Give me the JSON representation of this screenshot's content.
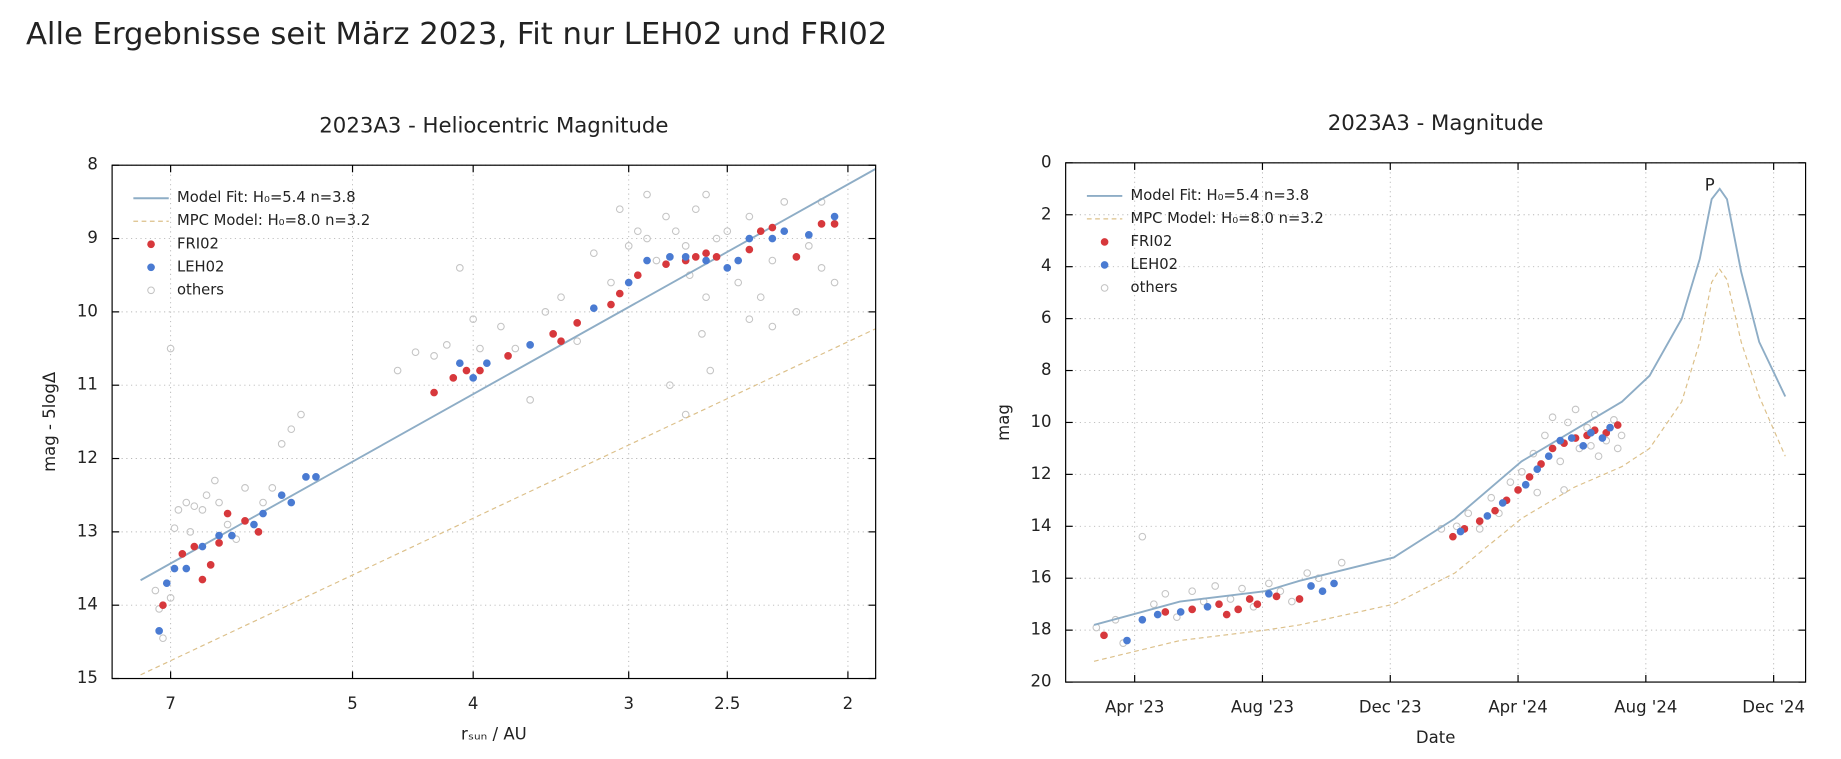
{
  "header": {
    "title": "Alle Ergebnisse seit März 2023, Fit nur LEH02 und FRI02"
  },
  "chart_data": [
    {
      "type": "scatter",
      "title": "2023A3 - Heliocentric Magnitude",
      "x_label": "rₛᵤₙ / AU",
      "y_label": "mag - 5logΔ",
      "x_scale": "log",
      "xlim": [
        7.8,
        1.9
      ],
      "xticks": [
        7,
        5,
        4,
        3,
        2.5,
        2
      ],
      "ylim": [
        15,
        8
      ],
      "yticks": [
        8,
        9,
        10,
        11,
        12,
        13,
        14,
        15
      ],
      "grid": true,
      "legend": "upper left",
      "series": [
        {
          "name": "Model Fit: H₀=5.4 n=3.8",
          "color": "#8eadc6",
          "style": "line",
          "x": [
            7.4,
            1.9
          ],
          "values": [
            13.66,
            8.05
          ]
        },
        {
          "name": "MPC Model: H₀=8.0 n=3.2",
          "color": "#dcc08a",
          "style": "dashed",
          "x": [
            7.4,
            1.9
          ],
          "values": [
            14.95,
            10.23
          ]
        },
        {
          "name": "FRI02",
          "color": "#d7383c",
          "style": "dot",
          "x": [
            7.1,
            6.85,
            6.7,
            6.6,
            6.5,
            6.4,
            6.3,
            6.1,
            5.95,
            4.3,
            4.15,
            4.05,
            3.95,
            3.75,
            3.45,
            3.4,
            3.3,
            3.1,
            3.05,
            2.95,
            2.8,
            2.7,
            2.65,
            2.6,
            2.55,
            2.4,
            2.35,
            2.3,
            2.2,
            2.1,
            2.05
          ],
          "values": [
            14.0,
            13.3,
            13.2,
            13.65,
            13.45,
            13.15,
            12.75,
            12.85,
            13.0,
            11.1,
            10.9,
            10.8,
            10.8,
            10.6,
            10.3,
            10.4,
            10.15,
            9.9,
            9.75,
            9.5,
            9.35,
            9.3,
            9.25,
            9.2,
            9.25,
            9.15,
            8.9,
            8.85,
            9.25,
            8.8,
            8.8
          ]
        },
        {
          "name": "LEH02",
          "color": "#4a7bd2",
          "style": "dot",
          "x": [
            7.15,
            7.05,
            6.95,
            6.8,
            6.6,
            6.4,
            6.25,
            6.0,
            5.9,
            5.7,
            5.6,
            5.45,
            5.35,
            4.1,
            4.0,
            3.9,
            3.6,
            3.2,
            3.0,
            2.9,
            2.78,
            2.7,
            2.6,
            2.5,
            2.45,
            2.4,
            2.3,
            2.25,
            2.15,
            2.05
          ],
          "values": [
            14.35,
            13.7,
            13.5,
            13.5,
            13.2,
            13.05,
            13.05,
            12.9,
            12.75,
            12.5,
            12.6,
            12.25,
            12.25,
            10.7,
            10.9,
            10.7,
            10.45,
            9.95,
            9.6,
            9.3,
            9.25,
            9.25,
            9.3,
            9.4,
            9.3,
            9.0,
            9.0,
            8.9,
            8.95,
            8.7
          ]
        },
        {
          "name": "others",
          "color": "#c4c4c4",
          "style": "circle",
          "x": [
            7.2,
            7.15,
            7.1,
            7.0,
            6.95,
            7.0,
            6.9,
            6.8,
            6.75,
            6.7,
            6.6,
            6.55,
            6.45,
            6.4,
            6.3,
            6.2,
            6.1,
            5.9,
            5.8,
            5.7,
            5.6,
            5.5,
            4.6,
            4.45,
            4.3,
            4.2,
            4.1,
            4.0,
            3.95,
            3.8,
            3.7,
            3.6,
            3.5,
            3.4,
            3.3,
            3.2,
            3.1,
            3.0,
            2.95,
            2.9,
            2.85,
            2.8,
            2.75,
            2.7,
            2.68,
            2.65,
            2.62,
            2.6,
            2.55,
            2.5,
            2.45,
            2.4,
            2.35,
            2.3,
            2.25,
            2.2,
            2.15,
            2.1,
            2.05,
            2.78,
            2.7,
            2.58,
            2.4,
            2.3,
            3.05,
            2.9,
            2.6,
            2.1
          ],
          "values": [
            13.8,
            14.05,
            14.45,
            13.9,
            12.95,
            10.5,
            12.7,
            12.6,
            13.0,
            12.65,
            12.7,
            12.5,
            12.3,
            12.6,
            12.9,
            13.1,
            12.4,
            12.6,
            12.4,
            11.8,
            11.6,
            11.4,
            10.8,
            10.55,
            10.6,
            10.45,
            9.4,
            10.1,
            10.5,
            10.2,
            10.5,
            11.2,
            10.0,
            9.8,
            10.4,
            9.2,
            9.6,
            9.1,
            8.9,
            9.0,
            9.3,
            8.7,
            8.9,
            9.1,
            9.5,
            8.6,
            10.3,
            9.8,
            9.0,
            8.9,
            9.6,
            8.7,
            9.8,
            9.3,
            8.5,
            10.0,
            9.1,
            9.4,
            9.6,
            11.0,
            11.4,
            10.8,
            10.1,
            10.2,
            8.6,
            8.4,
            8.4,
            8.5
          ]
        }
      ]
    },
    {
      "type": "scatter",
      "title": "2023A3 - Magnitude",
      "x_label": "Date",
      "y_label": "mag",
      "x_scale": "linear",
      "xlim": [
        2023.07,
        2025.0
      ],
      "xticks": [
        {
          "value": 2023.25,
          "label": "Apr '23"
        },
        {
          "value": 2023.5833,
          "label": "Aug '23"
        },
        {
          "value": 2023.9167,
          "label": "Dec '23"
        },
        {
          "value": 2024.25,
          "label": "Apr '24"
        },
        {
          "value": 2024.5833,
          "label": "Aug '24"
        },
        {
          "value": 2024.9167,
          "label": "Dec '24"
        }
      ],
      "ylim": [
        20,
        0
      ],
      "yticks": [
        0,
        2,
        4,
        6,
        8,
        10,
        12,
        14,
        16,
        18,
        20
      ],
      "grid": true,
      "legend": "upper left",
      "annotations": [
        {
          "text": "P",
          "x": 2024.75,
          "y": 0.9
        }
      ],
      "series": [
        {
          "name": "Model Fit: H₀=5.4 n=3.8",
          "color": "#8eadc6",
          "style": "line",
          "x": [
            2023.144,
            2023.368,
            2023.59,
            2023.68,
            2023.926,
            2024.085,
            2024.259,
            2024.396,
            2024.521,
            2024.593,
            2024.677,
            2024.724,
            2024.755,
            2024.776,
            2024.795,
            2024.832,
            2024.879,
            2024.947
          ],
          "values": [
            17.8,
            16.9,
            16.5,
            16.1,
            15.2,
            13.7,
            11.5,
            10.3,
            9.2,
            8.2,
            6.0,
            3.7,
            1.4,
            1.0,
            1.4,
            4.2,
            6.9,
            9.0
          ]
        },
        {
          "name": "MPC Model: H₀=8.0 n=3.2",
          "color": "#dcc08a",
          "style": "dashed",
          "x": [
            2023.144,
            2023.368,
            2023.59,
            2023.68,
            2023.926,
            2024.085,
            2024.259,
            2024.396,
            2024.521,
            2024.593,
            2024.677,
            2024.724,
            2024.755,
            2024.776,
            2024.795,
            2024.832,
            2024.879,
            2024.947
          ],
          "values": [
            19.2,
            18.4,
            18.0,
            17.8,
            17.0,
            15.8,
            13.7,
            12.5,
            11.7,
            11.0,
            9.2,
            6.9,
            4.6,
            4.1,
            4.5,
            6.9,
            9.0,
            11.3
          ]
        },
        {
          "name": "FRI02",
          "color": "#d7383c",
          "style": "dot",
          "x": [
            2023.17,
            2023.33,
            2023.4,
            2023.47,
            2023.49,
            2023.52,
            2023.55,
            2023.57,
            2023.62,
            2023.68,
            2024.08,
            2024.11,
            2024.15,
            2024.19,
            2024.22,
            2024.25,
            2024.28,
            2024.31,
            2024.34,
            2024.37,
            2024.4,
            2024.43,
            2024.45,
            2024.48,
            2024.51
          ],
          "values": [
            18.2,
            17.3,
            17.2,
            17.0,
            17.4,
            17.2,
            16.8,
            17.0,
            16.7,
            16.8,
            14.4,
            14.1,
            13.8,
            13.4,
            13.0,
            12.6,
            12.1,
            11.6,
            11.0,
            10.8,
            10.6,
            10.5,
            10.3,
            10.4,
            10.1
          ]
        },
        {
          "name": "LEH02",
          "color": "#4a7bd2",
          "style": "dot",
          "x": [
            2023.23,
            2023.27,
            2023.31,
            2023.37,
            2023.44,
            2023.6,
            2023.71,
            2023.74,
            2023.77,
            2024.1,
            2024.17,
            2024.21,
            2024.27,
            2024.3,
            2024.33,
            2024.36,
            2024.39,
            2024.42,
            2024.44,
            2024.47,
            2024.49
          ],
          "values": [
            18.4,
            17.6,
            17.4,
            17.3,
            17.1,
            16.6,
            16.3,
            16.5,
            16.2,
            14.2,
            13.6,
            13.1,
            12.4,
            11.8,
            11.3,
            10.7,
            10.6,
            10.9,
            10.4,
            10.6,
            10.2
          ]
        },
        {
          "name": "others",
          "color": "#c4c4c4",
          "style": "circle",
          "x": [
            2023.15,
            2023.2,
            2023.22,
            2023.27,
            2023.3,
            2023.33,
            2023.36,
            2023.4,
            2023.43,
            2023.46,
            2023.5,
            2023.53,
            2023.56,
            2023.6,
            2023.63,
            2023.66,
            2023.7,
            2023.73,
            2023.79,
            2024.05,
            2024.09,
            2024.12,
            2024.15,
            2024.18,
            2024.2,
            2024.23,
            2024.26,
            2024.29,
            2024.3,
            2024.32,
            2024.34,
            2024.36,
            2024.38,
            2024.4,
            2024.41,
            2024.43,
            2024.45,
            2024.46,
            2024.48,
            2024.5,
            2024.51,
            2024.52,
            2024.37,
            2024.44
          ],
          "values": [
            17.9,
            17.6,
            18.5,
            14.4,
            17.0,
            16.6,
            17.5,
            16.5,
            16.9,
            16.3,
            16.8,
            16.4,
            17.1,
            16.2,
            16.5,
            16.9,
            15.8,
            16.0,
            15.4,
            14.1,
            14.0,
            13.5,
            14.1,
            12.9,
            13.5,
            12.3,
            11.9,
            11.2,
            12.7,
            10.5,
            9.8,
            11.5,
            10.0,
            9.5,
            11.0,
            10.2,
            9.7,
            11.3,
            10.7,
            9.9,
            11.0,
            10.5,
            12.6,
            10.9
          ]
        }
      ]
    }
  ]
}
